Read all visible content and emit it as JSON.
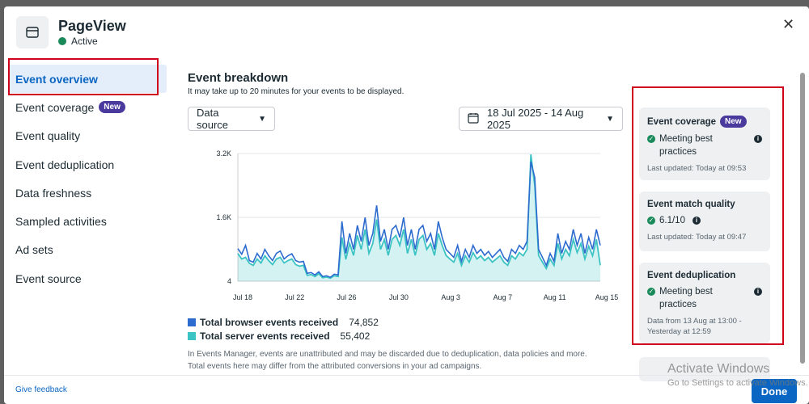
{
  "header": {
    "title": "PageView",
    "status": "Active"
  },
  "sidebar": {
    "items": [
      {
        "label": "Event overview",
        "active": true,
        "badge": ""
      },
      {
        "label": "Event coverage",
        "badge": "New"
      },
      {
        "label": "Event quality",
        "badge": ""
      },
      {
        "label": "Event deduplication",
        "badge": ""
      },
      {
        "label": "Data freshness",
        "badge": ""
      },
      {
        "label": "Sampled activities",
        "badge": ""
      },
      {
        "label": "Ad sets",
        "badge": ""
      },
      {
        "label": "Event source",
        "badge": ""
      }
    ]
  },
  "main": {
    "title": "Event breakdown",
    "subtitle": "It may take up to 20 minutes for your events to be displayed.",
    "data_source_label": "Data source",
    "date_range": "18 Jul 2025 - 14 Aug 2025",
    "disclaimer": "In Events Manager, events are unattributed and may be discarded due to deduplication, data policies and more. Total events here may differ from the attributed conversions in your ad campaigns."
  },
  "legend": [
    {
      "label": "Total browser events received",
      "value": "74,852",
      "color": "#2d6bcf"
    },
    {
      "label": "Total server events received",
      "value": "55,402",
      "color": "#3cc3c3"
    }
  ],
  "cards": [
    {
      "title": "Event coverage",
      "badge": "New",
      "status": "Meeting best practices",
      "updated": "Last updated: Today at 09:53"
    },
    {
      "title": "Event match quality",
      "status": "6.1/10",
      "updated": "Last updated: Today at 09:47"
    },
    {
      "title": "Event deduplication",
      "status": "Meeting best practices",
      "updated": "Data from 13 Aug at 13:00 - Yesterday at 12:59"
    }
  ],
  "footer": {
    "feedback": "Give feedback",
    "done": "Done"
  },
  "watermark": {
    "title": "Activate Windows",
    "subtitle": "Go to Settings to activate Windows."
  },
  "colors": {
    "accent": "#0a66c2",
    "browser": "#2d6bcf",
    "server": "#3cc3c3",
    "annotation": "#d0021b"
  },
  "chart_data": {
    "type": "area",
    "y_tick_labels": [
      "3.2K",
      "1.6K",
      "4"
    ],
    "ylim": [
      4,
      3200
    ],
    "x_tick_labels": [
      "Jul 18",
      "Jul 22",
      "Jul 26",
      "Jul 30",
      "Aug 3",
      "Aug 7",
      "Aug 11",
      "Aug 15"
    ],
    "series": [
      {
        "name": "Total browser events received",
        "color": "#2d6bcf",
        "values": [
          820,
          680,
          900,
          520,
          480,
          700,
          560,
          800,
          640,
          520,
          700,
          760,
          560,
          640,
          690,
          520,
          480,
          500,
          200,
          220,
          160,
          240,
          120,
          140,
          100,
          180,
          160,
          1500,
          700,
          1200,
          800,
          1400,
          1000,
          1600,
          900,
          1200,
          1900,
          1000,
          1300,
          800,
          1300,
          1400,
          1100,
          1600,
          900,
          1300,
          800,
          1300,
          1400,
          1000,
          1200,
          800,
          1500,
          1100,
          800,
          700,
          600,
          900,
          500,
          800,
          600,
          900,
          700,
          800,
          650,
          750,
          600,
          700,
          800,
          600,
          500,
          800,
          700,
          900,
          800,
          1000,
          3000,
          2600,
          800,
          600,
          400,
          700,
          500,
          1200,
          700,
          1000,
          800,
          1300,
          900,
          1200,
          700,
          1100,
          800,
          1300,
          900
        ]
      },
      {
        "name": "Total server events received",
        "color": "#3cc3c3",
        "values": [
          700,
          560,
          600,
          450,
          400,
          560,
          460,
          640,
          520,
          420,
          560,
          600,
          460,
          520,
          560,
          420,
          380,
          400,
          150,
          170,
          120,
          190,
          90,
          110,
          80,
          140,
          120,
          1100,
          550,
          950,
          650,
          1150,
          800,
          1300,
          700,
          950,
          1550,
          800,
          1050,
          650,
          1050,
          1150,
          900,
          1300,
          700,
          1050,
          650,
          1050,
          1150,
          800,
          950,
          650,
          1200,
          900,
          650,
          560,
          480,
          700,
          400,
          640,
          480,
          720,
          560,
          640,
          520,
          600,
          480,
          560,
          640,
          480,
          400,
          640,
          560,
          720,
          640,
          800,
          3180,
          2400,
          650,
          480,
          320,
          560,
          400,
          950,
          560,
          800,
          640,
          1050,
          720,
          950,
          560,
          880,
          640,
          1050,
          400
        ]
      }
    ]
  }
}
